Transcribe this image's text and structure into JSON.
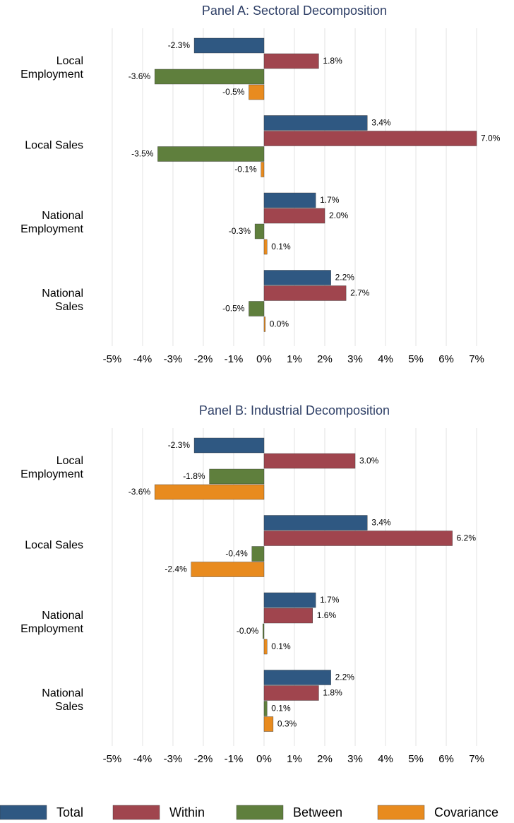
{
  "chart_data": [
    {
      "type": "hbar",
      "title": "Panel A: Sectoral Decomposition",
      "categories": [
        "Local Employment",
        "Local Sales",
        "National Employment",
        "National Sales"
      ],
      "series": [
        {
          "name": "Total",
          "color": "#2f5882",
          "values": [
            -2.3,
            3.4,
            1.7,
            2.2
          ],
          "value_labels": [
            "-2.3%",
            "3.4%",
            "1.7%",
            "2.2%"
          ]
        },
        {
          "name": "Within",
          "color": "#a0454e",
          "values": [
            1.8,
            7.0,
            2.0,
            2.7
          ],
          "value_labels": [
            "1.8%",
            "7.0%",
            "2.0%",
            "2.7%"
          ]
        },
        {
          "name": "Between",
          "color": "#5f7f3d",
          "values": [
            -3.6,
            -3.5,
            -0.3,
            -0.5
          ],
          "value_labels": [
            "-3.6%",
            "-3.5%",
            "-0.3%",
            "-0.5%"
          ]
        },
        {
          "name": "Covariance",
          "color": "#e88b1f",
          "values": [
            -0.5,
            -0.1,
            0.1,
            0.04
          ],
          "value_labels": [
            "-0.5%",
            "-0.1%",
            "0.1%",
            "0.0%"
          ]
        }
      ],
      "xlim": [
        -5.44,
        7.58
      ],
      "xticks": [
        {
          "value": -5,
          "label": "-5%"
        },
        {
          "value": -4,
          "label": "-4%"
        },
        {
          "value": -3,
          "label": "-3%"
        },
        {
          "value": -2,
          "label": "-2%"
        },
        {
          "value": -1,
          "label": "-1%"
        },
        {
          "value": 0,
          "label": "0%"
        },
        {
          "value": 1,
          "label": "1%"
        },
        {
          "value": 2,
          "label": "2%"
        },
        {
          "value": 3,
          "label": "3%"
        },
        {
          "value": 4,
          "label": "4%"
        },
        {
          "value": 5,
          "label": "5%"
        },
        {
          "value": 6,
          "label": "6%"
        },
        {
          "value": 7,
          "label": "7%"
        }
      ],
      "grid": true
    },
    {
      "type": "hbar",
      "title": "Panel B: Industrial Decomposition",
      "categories": [
        "Local Employment",
        "Local Sales",
        "National Employment",
        "National Sales"
      ],
      "series": [
        {
          "color": "#2f5882",
          "values": [
            -2.3,
            3.4,
            1.7,
            2.2
          ],
          "value_labels": [
            "-2.3%",
            "3.4%",
            "1.7%",
            "2.2%"
          ]
        },
        {
          "color": "#a0454e",
          "values": [
            3.0,
            6.2,
            1.6,
            1.8
          ],
          "value_labels": [
            "3.0%",
            "6.2%",
            "1.6%",
            "1.8%"
          ]
        },
        {
          "color": "#5f7f3d",
          "values": [
            -1.8,
            -0.4,
            -0.04,
            0.1
          ],
          "value_labels": [
            "-1.8%",
            "-0.4%",
            "-0.0%",
            "0.1%"
          ]
        },
        {
          "color": "#e88b1f",
          "values": [
            -3.6,
            -2.4,
            0.1,
            0.3
          ],
          "value_labels": [
            "-3.6%",
            "-2.4%",
            "0.1%",
            "0.3%"
          ]
        }
      ],
      "xlim": [
        -5.44,
        7.58
      ],
      "xticks": [
        {
          "value": -5,
          "label": "-5%"
        },
        {
          "value": -4,
          "label": "-4%"
        },
        {
          "value": -3,
          "label": "-3%"
        },
        {
          "value": -2,
          "label": "-2%"
        },
        {
          "value": -1,
          "label": "-1%"
        },
        {
          "value": 0,
          "label": "0%"
        },
        {
          "value": 1,
          "label": "1%"
        },
        {
          "value": 2,
          "label": "2%"
        },
        {
          "value": 3,
          "label": "3%"
        },
        {
          "value": 4,
          "label": "4%"
        },
        {
          "value": 5,
          "label": "5%"
        },
        {
          "value": 6,
          "label": "6%"
        },
        {
          "value": 7,
          "label": "7%"
        }
      ],
      "grid": true
    }
  ]
}
